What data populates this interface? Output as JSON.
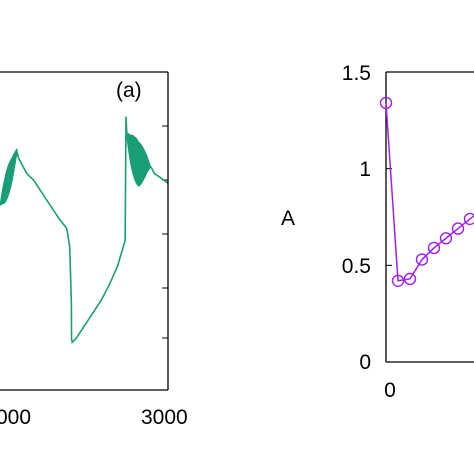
{
  "chart_data": [
    {
      "type": "line",
      "panel_label": "(a)",
      "x_tick_labels": [
        "000",
        "3000"
      ],
      "xlim": [
        1000,
        3000
      ],
      "color": "#1a9e77",
      "x": [
        1000,
        1020,
        1060,
        1100,
        1140,
        1180,
        1200,
        1220,
        1260,
        1300,
        1320,
        1360,
        1400,
        1500,
        1600,
        1700,
        1790,
        1800,
        1830,
        1850,
        1852,
        1860,
        1900,
        1950,
        2000,
        2050,
        2100,
        2200,
        2300,
        2400,
        2490,
        2500,
        2510,
        2550,
        2600,
        2650,
        2700,
        2750,
        2800,
        2840,
        2900,
        2950,
        3000
      ],
      "y": [
        0.58,
        0.6,
        0.63,
        0.66,
        0.69,
        0.73,
        0.75,
        0.73,
        0.71,
        0.69,
        0.68,
        0.67,
        0.66,
        0.62,
        0.58,
        0.54,
        0.51,
        0.5,
        0.45,
        0.27,
        0.16,
        0.15,
        0.16,
        0.18,
        0.2,
        0.22,
        0.24,
        0.28,
        0.33,
        0.39,
        0.47,
        0.86,
        0.8,
        0.76,
        0.73,
        0.71,
        0.71,
        0.71,
        0.7,
        0.68,
        0.67,
        0.66,
        0.65
      ],
      "oscillation_bands": [
        {
          "x_start": 1000,
          "x_end": 1250,
          "amplitude": 0.06
        },
        {
          "x_start": 2500,
          "x_end": 2840,
          "amplitude": 0.09
        }
      ]
    },
    {
      "type": "line",
      "marker": "open-circle",
      "color": "#a020f0",
      "ylabel": "A",
      "ylim": [
        0,
        1.5
      ],
      "y_tick_labels": [
        "0",
        "0.5",
        "1",
        "1.5"
      ],
      "y_ticks": [
        0,
        0.5,
        1,
        1.5
      ],
      "x_tick_labels": [
        "0"
      ],
      "x": [
        0,
        0.5,
        1,
        1.5,
        2,
        2.5,
        3,
        3.5,
        4
      ],
      "y": [
        1.34,
        0.42,
        0.43,
        0.53,
        0.59,
        0.64,
        0.69,
        0.74,
        0.79
      ]
    }
  ]
}
